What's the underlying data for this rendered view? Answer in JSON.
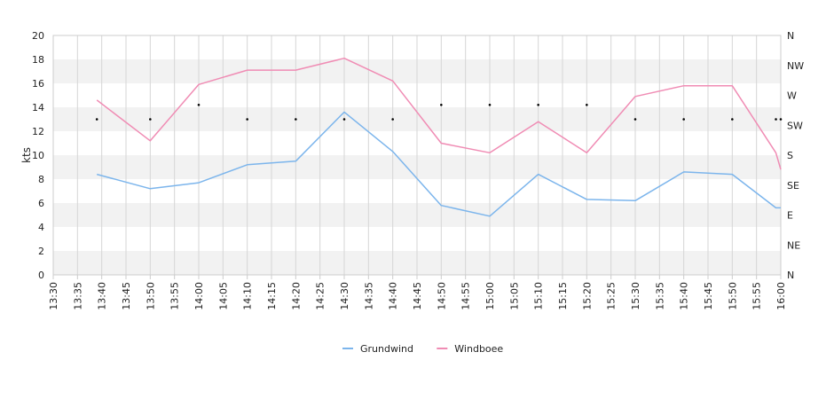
{
  "chart_data": {
    "type": "line",
    "ylabel": "kts",
    "ylim": [
      0,
      20
    ],
    "y_ticks": [
      "0",
      "2",
      "4",
      "6",
      "8",
      "10",
      "12",
      "14",
      "16",
      "18",
      "20"
    ],
    "x_ticks": [
      "13:30",
      "13:35",
      "13:40",
      "13:45",
      "13:50",
      "13:55",
      "14:00",
      "14:05",
      "14:10",
      "14:15",
      "14:20",
      "14:25",
      "14:30",
      "14:35",
      "14:40",
      "14:45",
      "14:50",
      "14:55",
      "15:00",
      "15:05",
      "15:10",
      "15:15",
      "15:20",
      "15:25",
      "15:30",
      "15:35",
      "15:40",
      "15:45",
      "15:50",
      "15:55",
      "16:00"
    ],
    "right_axis": {
      "labels": [
        "N",
        "NE",
        "E",
        "SE",
        "S",
        "SW",
        "W",
        "NW",
        "N"
      ],
      "range": [
        0,
        360
      ]
    },
    "x": [
      "13:39",
      "13:50",
      "14:00",
      "14:10",
      "14:20",
      "14:30",
      "14:40",
      "14:50",
      "15:00",
      "15:10",
      "15:20",
      "15:30",
      "15:40",
      "15:50",
      "15:59",
      "16:00"
    ],
    "series": [
      {
        "name": "Grundwind",
        "color": "#7cb5ec",
        "values": [
          8.4,
          7.2,
          7.7,
          9.2,
          9.5,
          13.6,
          10.3,
          5.8,
          4.9,
          8.4,
          6.3,
          6.2,
          8.6,
          8.4,
          5.6,
          5.6
        ]
      },
      {
        "name": "Windboee",
        "color": "#f08cb4",
        "values": [
          14.6,
          11.2,
          15.9,
          17.1,
          17.1,
          18.1,
          16.2,
          11.0,
          10.2,
          12.8,
          10.2,
          14.9,
          15.8,
          15.8,
          10.2,
          8.8
        ]
      }
    ],
    "direction_markers": {
      "x": [
        "13:39",
        "13:50",
        "14:00",
        "14:10",
        "14:20",
        "14:30",
        "14:40",
        "14:50",
        "15:00",
        "15:10",
        "15:20",
        "15:30",
        "15:40",
        "15:50",
        "15:59",
        "16:00"
      ],
      "values_kts": [
        13.0,
        13.0,
        14.2,
        13.0,
        13.0,
        13.0,
        13.0,
        14.2,
        14.2,
        14.2,
        14.2,
        13.0,
        13.0,
        13.0,
        13.0,
        13.0
      ]
    },
    "grid": true,
    "legend_position": "bottom-center"
  }
}
